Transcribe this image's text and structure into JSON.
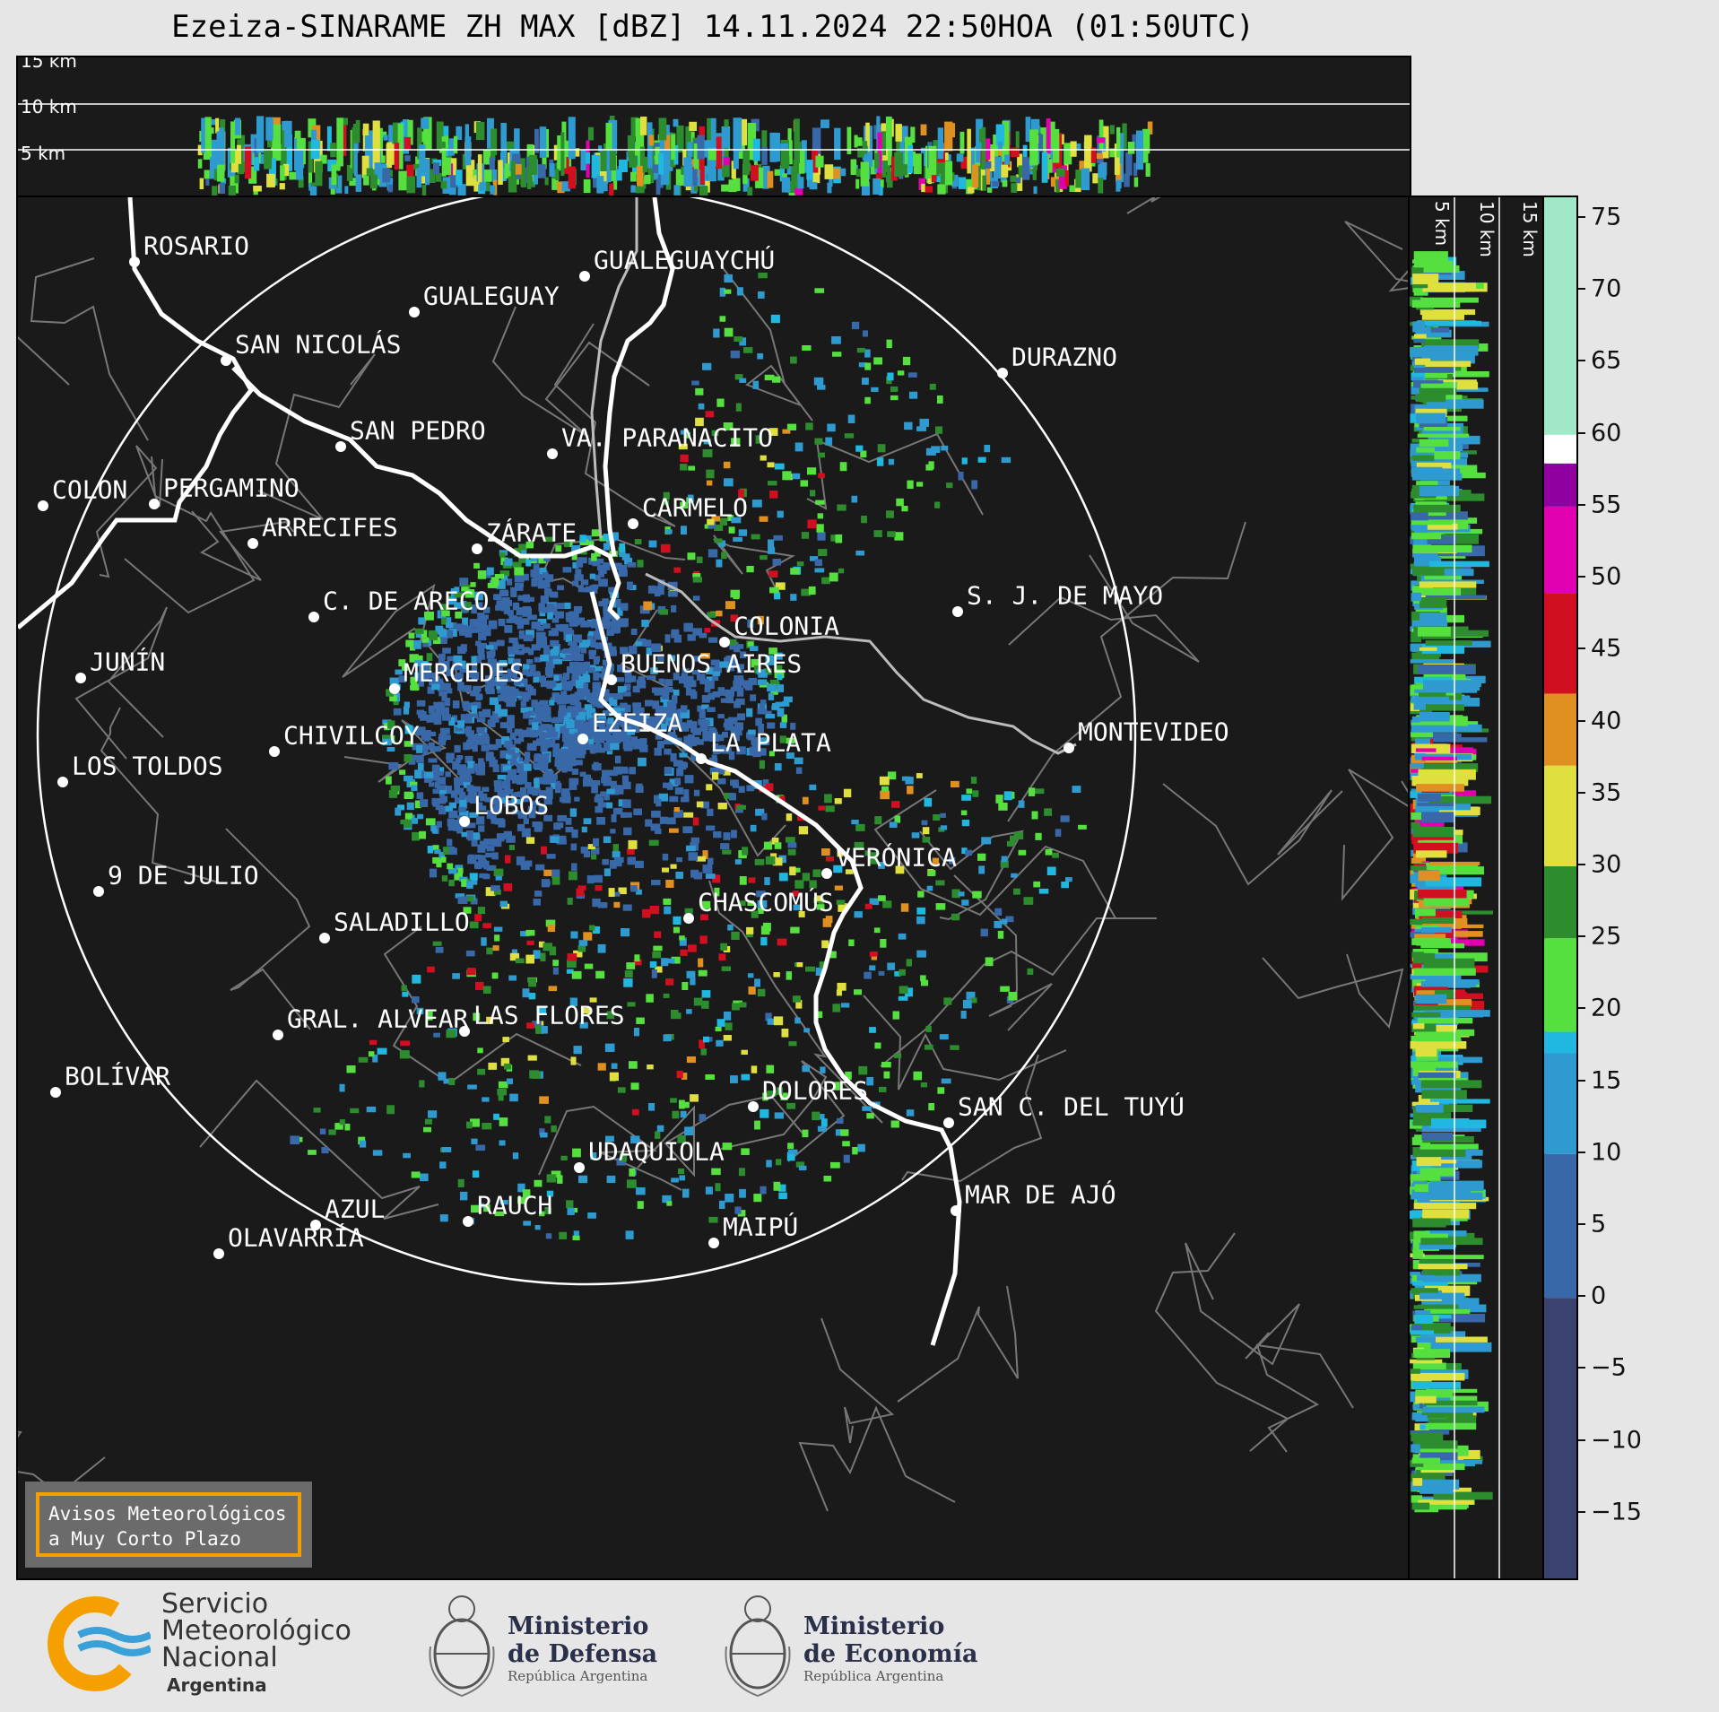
{
  "title": "Ezeiza-SINARAME ZH MAX [dBZ] 14.11.2024 22:50HOA (01:50UTC)",
  "top_panel": {
    "km_labels": [
      "15 km",
      "10 km",
      "5 km"
    ]
  },
  "right_panel": {
    "km_labels": [
      "5 km",
      "10 km",
      "15 km"
    ]
  },
  "colorbar": {
    "unit": "dBZ",
    "ticks": [
      "75",
      "70",
      "65",
      "60",
      "55",
      "50",
      "45",
      "40",
      "35",
      "30",
      "25",
      "20",
      "15",
      "10",
      "5",
      "0",
      "−5",
      "−10",
      "−15"
    ],
    "tick_values": [
      75,
      70,
      65,
      60,
      55,
      50,
      45,
      40,
      35,
      30,
      25,
      20,
      15,
      10,
      5,
      0,
      -5,
      -10,
      -15
    ],
    "min": -19.5,
    "max": 76.5,
    "stops": [
      {
        "from": -19.5,
        "to": 0,
        "color": "#3a4270"
      },
      {
        "from": 0,
        "to": 10,
        "color": "#3868a8"
      },
      {
        "from": 10,
        "to": 17,
        "color": "#2e9ad0"
      },
      {
        "from": 17,
        "to": 18.5,
        "color": "#20b8e0"
      },
      {
        "from": 18.5,
        "to": 25,
        "color": "#55e040"
      },
      {
        "from": 25,
        "to": 30,
        "color": "#2d8c2d"
      },
      {
        "from": 30,
        "to": 37,
        "color": "#dfe040"
      },
      {
        "from": 37,
        "to": 42,
        "color": "#e09020"
      },
      {
        "from": 42,
        "to": 49,
        "color": "#d01020"
      },
      {
        "from": 49,
        "to": 55,
        "color": "#e000b0"
      },
      {
        "from": 55,
        "to": 58,
        "color": "#9000a0"
      },
      {
        "from": 58,
        "to": 60,
        "color": "#ffffff"
      },
      {
        "from": 60,
        "to": 76.5,
        "color": "#a0e8c8"
      }
    ]
  },
  "cities": [
    {
      "name": "ROSARIO"
    },
    {
      "name": "GUALEGUAYCHÚ"
    },
    {
      "name": "GUALEGUAY"
    },
    {
      "name": "SAN NICOLÁS"
    },
    {
      "name": "DURAZNO"
    },
    {
      "name": "SAN PEDRO"
    },
    {
      "name": "VA. PARANACITO"
    },
    {
      "name": "COLON"
    },
    {
      "name": "PERGAMINO"
    },
    {
      "name": "CARMELO"
    },
    {
      "name": "ARRECIFES"
    },
    {
      "name": "ZÁRATE"
    },
    {
      "name": "S. J. DE MAYO"
    },
    {
      "name": "C. DE ARECO"
    },
    {
      "name": "COLONIA"
    },
    {
      "name": "BUENOS AIRES"
    },
    {
      "name": "JUNÍN"
    },
    {
      "name": "MERCEDES"
    },
    {
      "name": "EZEIZA"
    },
    {
      "name": "MONTEVIDEO"
    },
    {
      "name": "CHIVILCOY"
    },
    {
      "name": "LA PLATA"
    },
    {
      "name": "LOS TOLDOS"
    },
    {
      "name": "LOBOS"
    },
    {
      "name": "VERÓNICA"
    },
    {
      "name": "9 DE JULIO"
    },
    {
      "name": "CHASCOMÚS"
    },
    {
      "name": "SALADILLO"
    },
    {
      "name": "LAS FLORES"
    },
    {
      "name": "GRAL. ALVEAR"
    },
    {
      "name": "BOLÍVAR"
    },
    {
      "name": "DOLORES"
    },
    {
      "name": "SAN C. DEL TUYÚ"
    },
    {
      "name": "UDAQUIOLA"
    },
    {
      "name": "MAR DE AJÓ"
    },
    {
      "name": "RAUCH"
    },
    {
      "name": "AZUL"
    },
    {
      "name": "OLAVARRÍA"
    },
    {
      "name": "MAIPÚ"
    }
  ],
  "warning_box": {
    "line1": "Avisos Meteorológicos",
    "line2": "a Muy Corto Plazo"
  },
  "footer": {
    "smn": {
      "line1": "Servicio",
      "line2": "Meteorológico",
      "line3": "Nacional",
      "line4": "Argentina"
    },
    "defensa": {
      "line1": "Ministerio",
      "line2": "de Defensa",
      "line3": "República Argentina"
    },
    "economia": {
      "line1": "Ministerio",
      "line2": "de Economía",
      "line3": "República Argentina"
    }
  }
}
